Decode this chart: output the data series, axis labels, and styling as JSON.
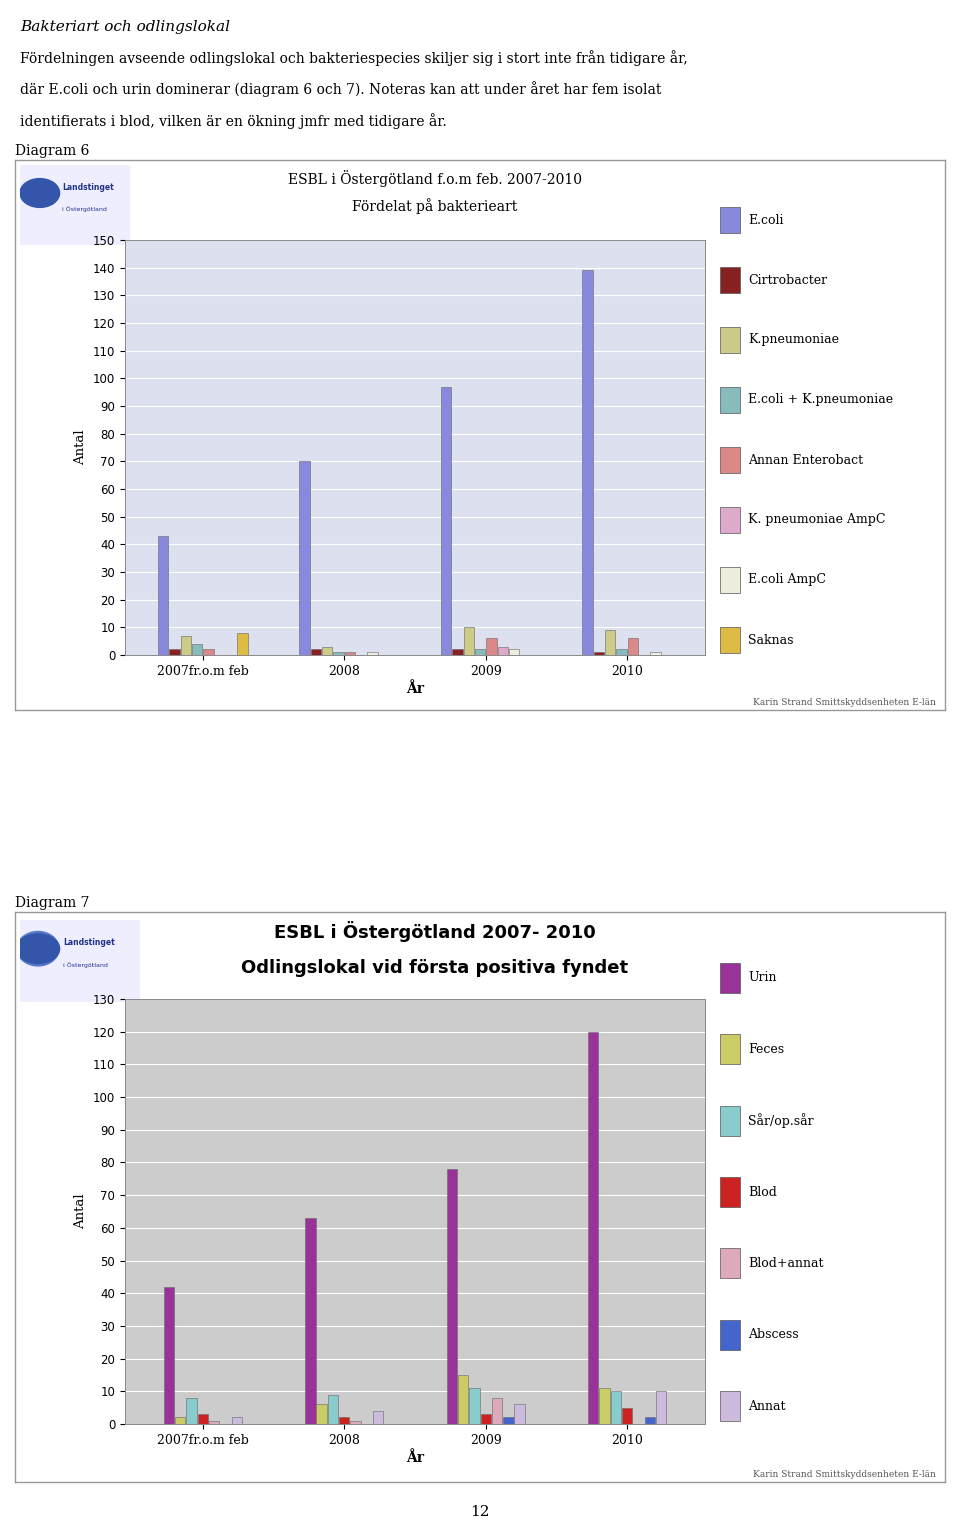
{
  "page_title_italic": "Bakteriart och odlingslokal",
  "page_text_lines": [
    "Fördelningen avseende odlingslokal och bakteriespecies skiljer sig i stort inte från tidigare år,",
    "där E.coli och urin dominerar (diagram 6 och 7). Noteras kan att under året har fem isolat",
    "identifierats i blod, vilken är en ökning jmfr med tidigare år."
  ],
  "page_number": "12",
  "diag6_label": "Diagram 6",
  "diag6_title1": "ESBL i Östergötland f.o.m feb. 2007-2010",
  "diag6_title2": "Fördelat på bakterieart",
  "diag6_ylabel": "Antal",
  "diag6_xlabel": "År",
  "diag6_ylim": [
    0,
    150
  ],
  "diag6_yticks": [
    0,
    10,
    20,
    30,
    40,
    50,
    60,
    70,
    80,
    90,
    100,
    110,
    120,
    130,
    140,
    150
  ],
  "diag6_categories": [
    "2007fr.o.m feb",
    "2008",
    "2009",
    "2010"
  ],
  "diag6_credit": "Karin Strand Smittskyddsenheten E-län",
  "diag6_chart_bg": "#dde0ee",
  "diag6_series": [
    {
      "label": "E.coli",
      "color": "#8888dd",
      "values": [
        43,
        70,
        97,
        139
      ]
    },
    {
      "label": "Cirtrobacter",
      "color": "#882222",
      "values": [
        2,
        2,
        2,
        1
      ]
    },
    {
      "label": "K.pneumoniae",
      "color": "#cccc88",
      "values": [
        7,
        3,
        10,
        9
      ]
    },
    {
      "label": "E.coli + K.pneumoniae",
      "color": "#88bbbb",
      "values": [
        4,
        1,
        2,
        2
      ]
    },
    {
      "label": "Annan Enterobact",
      "color": "#dd8888",
      "values": [
        2,
        1,
        6,
        6
      ]
    },
    {
      "label": "K. pneumoniae AmpC",
      "color": "#ddaacc",
      "values": [
        0,
        0,
        3,
        0
      ]
    },
    {
      "label": "E.coli AmpC",
      "color": "#eeeedd",
      "values": [
        0,
        1,
        2,
        1
      ]
    },
    {
      "label": "Saknas",
      "color": "#ddbb44",
      "values": [
        8,
        0,
        0,
        0
      ]
    }
  ],
  "diag7_label": "Diagram 7",
  "diag7_title1": "ESBL i Östergötland 2007- 2010",
  "diag7_title2": "Odlingslokal vid första positiva fyndet",
  "diag7_ylabel": "Antal",
  "diag7_xlabel": "År",
  "diag7_ylim": [
    0,
    130
  ],
  "diag7_yticks": [
    0,
    10,
    20,
    30,
    40,
    50,
    60,
    70,
    80,
    90,
    100,
    110,
    120,
    130
  ],
  "diag7_categories": [
    "2007fr.o.m feb",
    "2008",
    "2009",
    "2010"
  ],
  "diag7_credit": "Karin Strand Smittskyddsenheten E-län",
  "diag7_chart_bg": "#cccccc",
  "diag7_series": [
    {
      "label": "Urin",
      "color": "#993399",
      "values": [
        42,
        63,
        78,
        120
      ]
    },
    {
      "label": "Feces",
      "color": "#cccc66",
      "values": [
        2,
        6,
        15,
        11
      ]
    },
    {
      "label": "Sår/op.sår",
      "color": "#88cccc",
      "values": [
        8,
        9,
        11,
        10
      ]
    },
    {
      "label": "Blod",
      "color": "#cc2222",
      "values": [
        3,
        2,
        3,
        5
      ]
    },
    {
      "label": "Blod+annat",
      "color": "#ddaabb",
      "values": [
        1,
        1,
        8,
        0
      ]
    },
    {
      "label": "Abscess",
      "color": "#4466cc",
      "values": [
        0,
        0,
        2,
        2
      ]
    },
    {
      "label": "Annat",
      "color": "#ccbbdd",
      "values": [
        2,
        4,
        6,
        10
      ]
    }
  ]
}
